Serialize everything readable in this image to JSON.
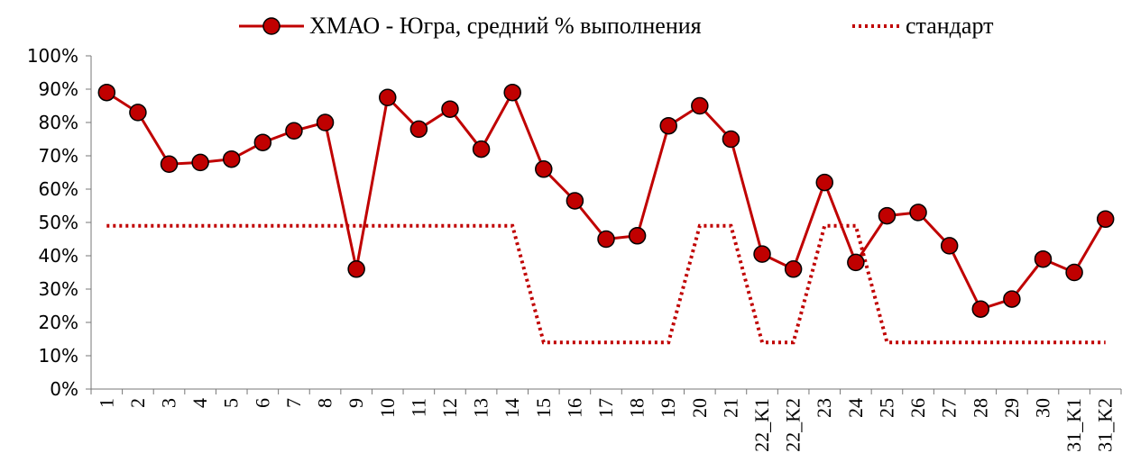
{
  "chart_data": {
    "type": "line",
    "categories": [
      "1",
      "2",
      "3",
      "4",
      "5",
      "6",
      "7",
      "8",
      "9",
      "10",
      "11",
      "12",
      "13",
      "14",
      "15",
      "16",
      "17",
      "18",
      "19",
      "20",
      "21",
      "22_K1",
      "22_K2",
      "23",
      "24",
      "25",
      "26",
      "27",
      "28",
      "29",
      "30",
      "31_K1",
      "31_K2"
    ],
    "series": [
      {
        "name": "ХМАО - Югра, средний % выполнения",
        "color": "#c00000",
        "style": "solid",
        "markers": true,
        "values": [
          89,
          83,
          67.5,
          68,
          69,
          74,
          77.5,
          80,
          36,
          87.5,
          78,
          84,
          72,
          89,
          66,
          56.5,
          45,
          46,
          79,
          85,
          75,
          40.5,
          36,
          62,
          38,
          52,
          53,
          43,
          24,
          27,
          39,
          35,
          51
        ]
      },
      {
        "name": "стандарт",
        "color": "#c00000",
        "style": "dotted",
        "markers": false,
        "values": [
          49,
          49,
          49,
          49,
          49,
          49,
          49,
          49,
          49,
          49,
          49,
          49,
          49,
          49,
          14,
          14,
          14,
          14,
          14,
          49,
          49,
          14,
          14,
          49,
          49,
          14,
          14,
          14,
          14,
          14,
          14,
          14,
          14
        ]
      }
    ],
    "ylim": [
      0,
      100
    ],
    "yticks": [
      {
        "value": 0,
        "label": "0%"
      },
      {
        "value": 10,
        "label": "10%"
      },
      {
        "value": 20,
        "label": "20%"
      },
      {
        "value": 30,
        "label": "30%"
      },
      {
        "value": 40,
        "label": "40%"
      },
      {
        "value": 50,
        "label": "50%"
      },
      {
        "value": 60,
        "label": "60%"
      },
      {
        "value": 70,
        "label": "70%"
      },
      {
        "value": 80,
        "label": "80%"
      },
      {
        "value": 90,
        "label": "90%"
      },
      {
        "value": 100,
        "label": "100%"
      }
    ],
    "legend": "top",
    "grid": false
  }
}
